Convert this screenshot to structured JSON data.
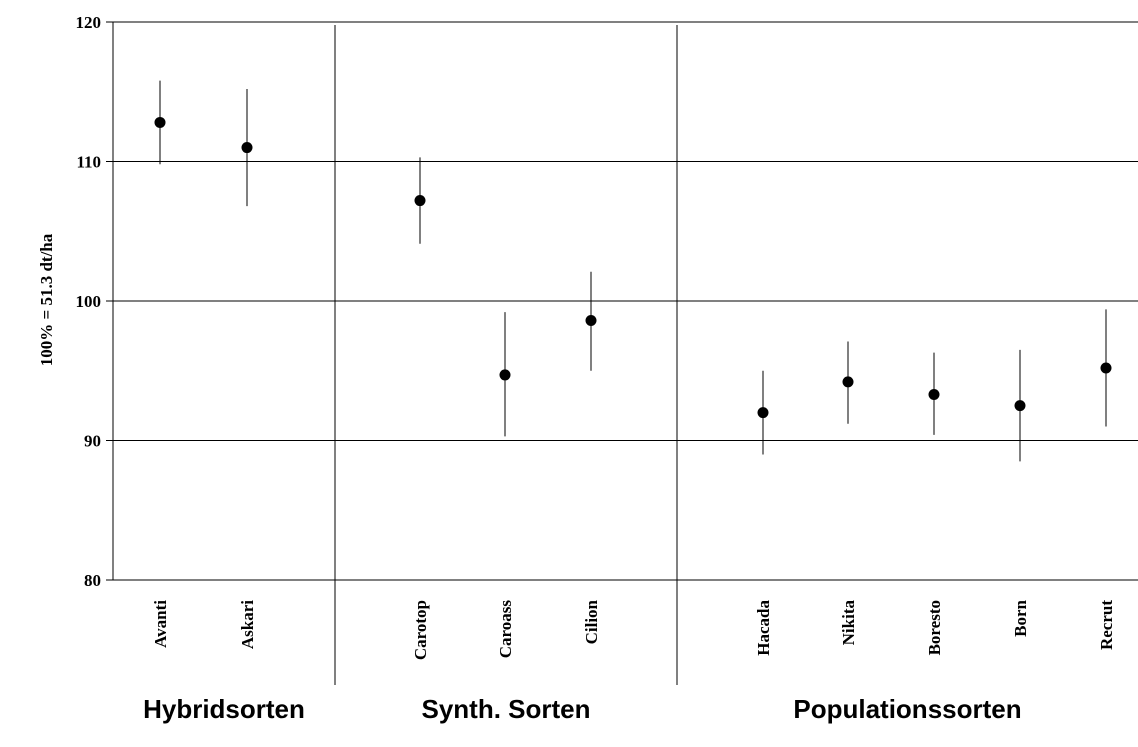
{
  "chart_data": {
    "type": "scatter",
    "title": "",
    "xlabel": "",
    "ylabel": "100% = 51.3  dt/ha",
    "ylim": [
      80,
      120
    ],
    "yticks": [
      80,
      90,
      100,
      110,
      120
    ],
    "grid": "horizontal",
    "groups": [
      {
        "name": "Hybridsorten",
        "categories": [
          "Avanti",
          "Askari"
        ]
      },
      {
        "name": "Synth. Sorten",
        "categories": [
          "Carotop",
          "Caroass",
          "Cilion"
        ]
      },
      {
        "name": "Populationssorten",
        "categories": [
          "Hacada",
          "Nikita",
          "Boresto",
          "Born",
          "Recrut"
        ]
      }
    ],
    "points": [
      {
        "category": "Avanti",
        "value": 112.8,
        "low": 109.8,
        "high": 115.8
      },
      {
        "category": "Askari",
        "value": 111.0,
        "low": 106.8,
        "high": 115.2
      },
      {
        "category": "Carotop",
        "value": 107.2,
        "low": 104.1,
        "high": 110.3
      },
      {
        "category": "Caroass",
        "value": 94.7,
        "low": 90.3,
        "high": 99.2
      },
      {
        "category": "Cilion",
        "value": 98.6,
        "low": 95.0,
        "high": 102.1
      },
      {
        "category": "Hacada",
        "value": 92.0,
        "low": 89.0,
        "high": 95.0
      },
      {
        "category": "Nikita",
        "value": 94.2,
        "low": 91.2,
        "high": 97.1
      },
      {
        "category": "Boresto",
        "value": 93.3,
        "low": 90.4,
        "high": 96.3
      },
      {
        "category": "Born",
        "value": 92.5,
        "low": 88.5,
        "high": 96.5
      },
      {
        "category": "Recrut",
        "value": 95.2,
        "low": 91.0,
        "high": 99.4
      }
    ]
  },
  "colors": {
    "marker": "#000000",
    "axis": "#000000",
    "grid": "#000000"
  }
}
